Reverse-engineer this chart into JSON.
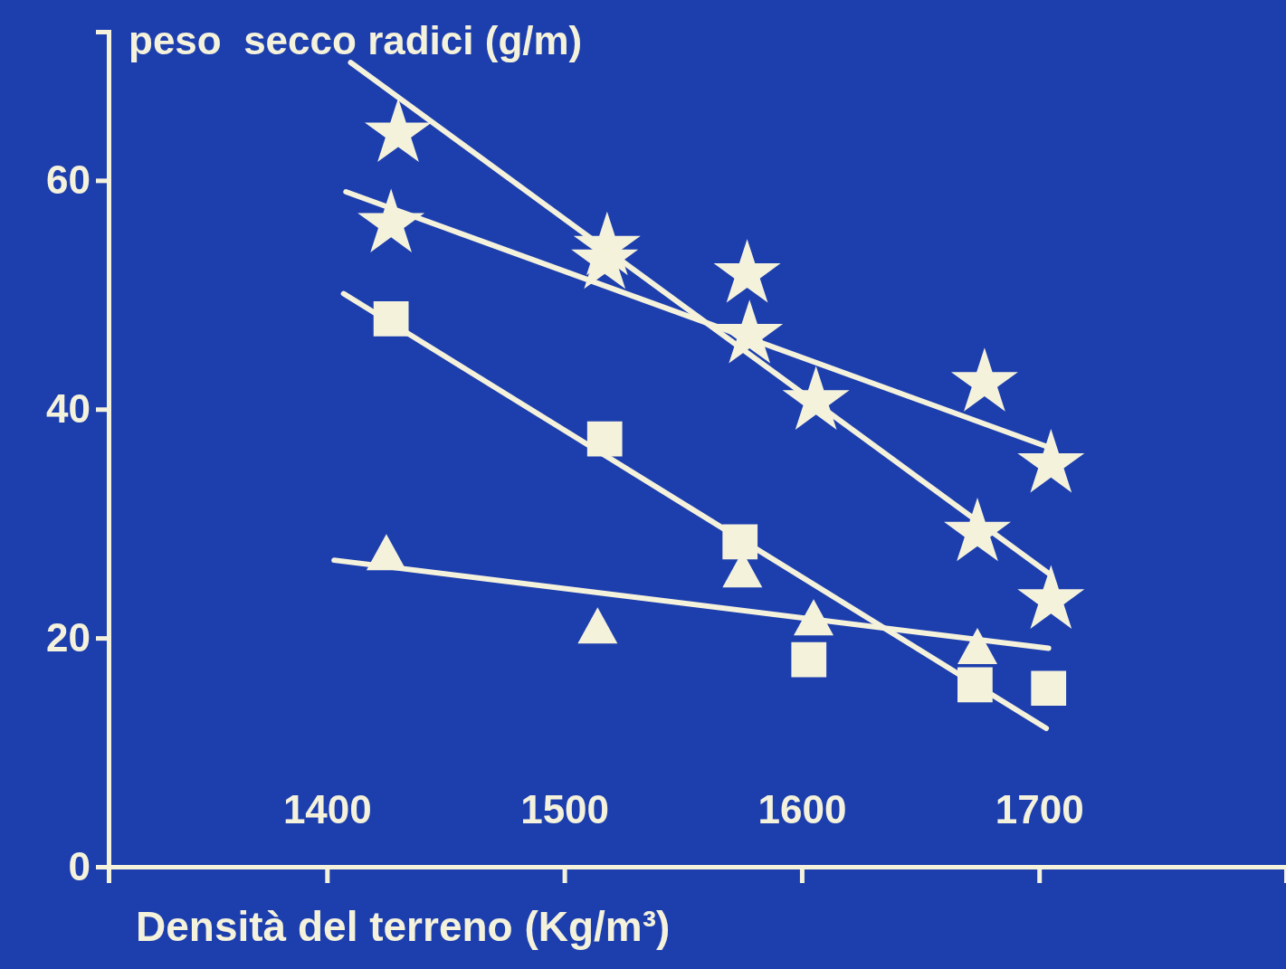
{
  "chart_data": {
    "type": "scatter",
    "xlabel": "Densità del terreno (Kg/m³)",
    "ylabel": "peso  secco radici (g/m)",
    "xlim": [
      1308,
      1804
    ],
    "ylim": [
      0,
      73
    ],
    "xticks": [
      1400,
      1500,
      1600,
      1700
    ],
    "yticks": [
      0,
      20,
      40,
      60
    ],
    "grid": false,
    "series": [
      {
        "marker": "star",
        "color": "#f5f2dc",
        "x": [
          1430,
          1518,
          1577,
          1606,
          1674,
          1705
        ],
        "values": [
          64.1,
          54.2,
          51.8,
          40.7,
          29.2,
          23.3
        ]
      },
      {
        "type": "line",
        "marker": "none",
        "color": "#f5f2dc",
        "x": [
          1410,
          1705
        ],
        "values": [
          70.3,
          25.5
        ]
      },
      {
        "marker": "star",
        "color": "#f5f2dc",
        "x": [
          1427,
          1517,
          1578,
          1677,
          1705
        ],
        "values": [
          56.2,
          53,
          46.5,
          42.3,
          35.2
        ]
      },
      {
        "type": "line",
        "marker": "none",
        "color": "#f5f2dc",
        "x": [
          1408,
          1705
        ],
        "values": [
          59,
          36.6
        ]
      },
      {
        "marker": "square",
        "color": "#f5f2dc",
        "x": [
          1427,
          1517,
          1574,
          1603,
          1673,
          1704
        ],
        "values": [
          47.9,
          37.4,
          28.4,
          18.1,
          15.9,
          15.6
        ]
      },
      {
        "type": "line",
        "marker": "none",
        "color": "#f5f2dc",
        "x": [
          1407,
          1703
        ],
        "values": [
          50.1,
          12.1
        ]
      },
      {
        "marker": "triangle",
        "color": "#f5f2dc",
        "x": [
          1425,
          1514,
          1575,
          1605,
          1674
        ],
        "values": [
          27.5,
          21.1,
          26,
          21.8,
          19.3
        ]
      },
      {
        "type": "line",
        "marker": "none",
        "color": "#f5f2dc",
        "x": [
          1403,
          1704
        ],
        "values": [
          26.8,
          19.1
        ]
      }
    ]
  }
}
